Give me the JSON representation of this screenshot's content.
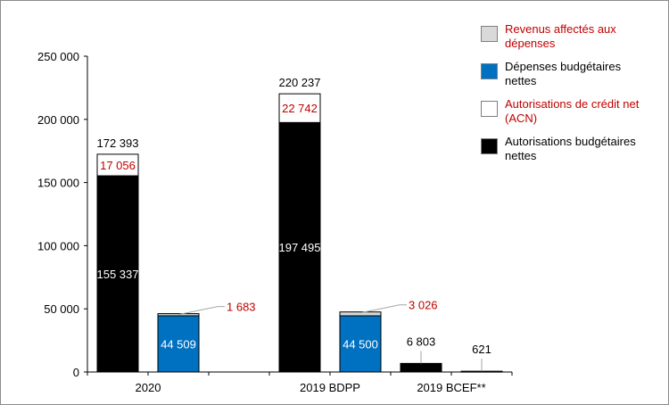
{
  "chart_data": {
    "type": "bar",
    "stacked": true,
    "categories": [
      "2020",
      "2019 BDPP",
      "2019 BCEF**"
    ],
    "yticks": [
      "0",
      "50 000",
      "100 000",
      "150 000",
      "200 000",
      "250 000"
    ],
    "ylim": [
      0,
      250000
    ],
    "grid": false,
    "legend_position": "top-right",
    "colors": {
      "autorisations": "#000000",
      "acn": "#ffffff",
      "depenses": "#0070c0",
      "revenus": "#d9d9d9",
      "red_label": "#c00000"
    },
    "legend": [
      {
        "label": "Revenus affectés aux dépenses",
        "color": "#d9d9d9",
        "text_color": "#c00000"
      },
      {
        "label": "Dépenses budgétaires nettes",
        "color": "#0070c0",
        "text_color": "#000000"
      },
      {
        "label": "Autorisations de crédit net (ACN)",
        "color": "#ffffff",
        "text_color": "#c00000"
      },
      {
        "label": "Autorisations budgétaires nettes",
        "color": "#000000",
        "text_color": "#000000"
      }
    ],
    "bars": [
      {
        "category": "2020",
        "segments": [
          {
            "series": "Autorisations budgétaires nettes",
            "value": 155337,
            "label": "155 337"
          },
          {
            "series": "Autorisations de crédit net (ACN)",
            "value": 17056,
            "label": "17 056"
          }
        ],
        "total_label": "172 393"
      },
      {
        "category": "2020",
        "segments": [
          {
            "series": "Dépenses budgétaires nettes",
            "value": 44509,
            "label": "44 509"
          },
          {
            "series": "Revenus affectés aux dépenses",
            "value": 1683,
            "label": "1 683"
          }
        ]
      },
      {
        "category": "2019 BDPP",
        "segments": [
          {
            "series": "Autorisations budgétaires nettes",
            "value": 197495,
            "label": "197 495"
          },
          {
            "series": "Autorisations de crédit net (ACN)",
            "value": 22742,
            "label": "22 742"
          }
        ],
        "total_label": "220 237"
      },
      {
        "category": "2019 BDPP",
        "segments": [
          {
            "series": "Dépenses budgétaires nettes",
            "value": 44500,
            "label": "44 500"
          },
          {
            "series": "Revenus affectés aux dépenses",
            "value": 3026,
            "label": "3 026"
          }
        ]
      },
      {
        "category": "2019 BCEF**",
        "segments": [
          {
            "series": "Autorisations budgétaires nettes",
            "value": 6803,
            "label": "6 803"
          }
        ]
      },
      {
        "category": "2019 BCEF**",
        "segments": [
          {
            "series": "Autorisations budgétaires nettes",
            "value": 621,
            "label": "621"
          }
        ]
      }
    ]
  }
}
